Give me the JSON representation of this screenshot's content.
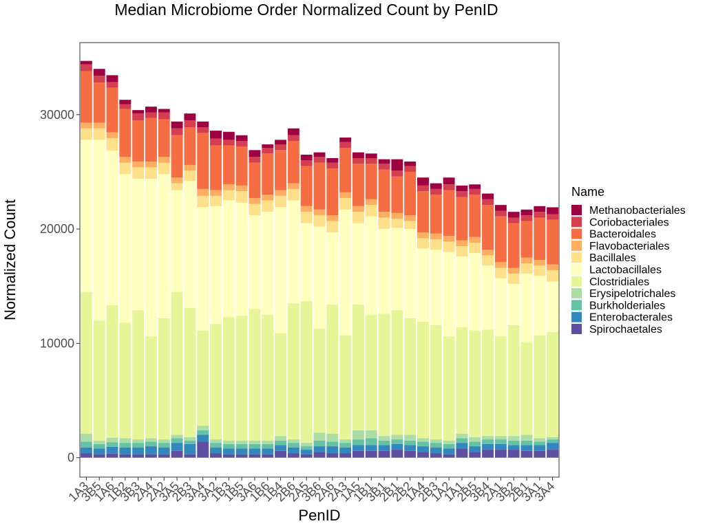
{
  "chart_data": {
    "type": "bar",
    "stacked": true,
    "title": "Median Microbiome Order Normalized Count by PenID",
    "xlabel": "PenID",
    "ylabel": "Normalized Count",
    "ylim": [
      -1700,
      36300
    ],
    "yticks": [
      0,
      10000,
      20000,
      30000
    ],
    "ytick_labels": [
      "0",
      "10000",
      "20000",
      "30000"
    ],
    "grid": false,
    "legend": {
      "title": "Name",
      "position": "right"
    },
    "categories": [
      "1A3",
      "3B5",
      "1A6",
      "1B2",
      "3B3",
      "2A4",
      "2A2",
      "3A5",
      "2B3",
      "3A4",
      "3A2",
      "1B3",
      "1B5",
      "3A6",
      "1B6",
      "1B4",
      "2B6",
      "2A5",
      "3B6",
      "2A6",
      "2A3",
      "1A5",
      "1B1",
      "3B1",
      "2B1",
      "2B2",
      "1A4",
      "2B3",
      "1A2",
      "1A1",
      "2B5",
      "3B4",
      "2A1",
      "3B2",
      "2B1",
      "3A1",
      "3A4"
    ],
    "series": [
      {
        "name": "Spirochaetales",
        "color": "#5E4FA2",
        "values": [
          400,
          300,
          350,
          300,
          300,
          300,
          300,
          600,
          300,
          1400,
          400,
          300,
          300,
          300,
          300,
          600,
          400,
          300,
          500,
          400,
          400,
          600,
          600,
          600,
          700,
          600,
          500,
          400,
          300,
          800,
          500,
          700,
          700,
          700,
          600,
          600,
          700
        ]
      },
      {
        "name": "Enterobacterales",
        "color": "#3288BD",
        "values": [
          500,
          500,
          600,
          600,
          600,
          700,
          600,
          700,
          900,
          600,
          500,
          500,
          500,
          500,
          500,
          500,
          500,
          400,
          500,
          600,
          500,
          500,
          500,
          500,
          500,
          500,
          500,
          500,
          500,
          500,
          500,
          500,
          500,
          400,
          500,
          500,
          600
        ]
      },
      {
        "name": "Burkholderiales",
        "color": "#66C2A5",
        "values": [
          500,
          400,
          400,
          400,
          400,
          400,
          400,
          400,
          300,
          400,
          400,
          400,
          400,
          400,
          400,
          400,
          400,
          300,
          500,
          400,
          400,
          500,
          600,
          400,
          400,
          400,
          400,
          400,
          400,
          400,
          400,
          400,
          400,
          400,
          400,
          300,
          300
        ]
      },
      {
        "name": "Erysipelotrichales",
        "color": "#ABDDA4",
        "values": [
          700,
          300,
          400,
          400,
          300,
          300,
          300,
          300,
          300,
          400,
          300,
          300,
          300,
          300,
          300,
          400,
          300,
          300,
          700,
          700,
          300,
          800,
          700,
          400,
          400,
          500,
          300,
          300,
          300,
          400,
          400,
          300,
          300,
          400,
          500,
          300,
          200
        ]
      },
      {
        "name": "Clostridiales",
        "color": "#E6F598",
        "values": [
          12400,
          10500,
          11600,
          10100,
          11300,
          8900,
          10600,
          12500,
          11300,
          8300,
          10100,
          10800,
          10900,
          11500,
          11000,
          9000,
          11900,
          12400,
          9100,
          11300,
          9100,
          11000,
          10100,
          10700,
          10900,
          10200,
          10200,
          10000,
          9100,
          9300,
          9300,
          9300,
          8700,
          9700,
          8100,
          9000,
          9200
        ]
      },
      {
        "name": "Lactobacillales",
        "color": "#FFFFBF",
        "values": [
          13300,
          15800,
          13500,
          13000,
          11500,
          13800,
          12600,
          8900,
          11100,
          10800,
          10300,
          10200,
          9900,
          8200,
          9000,
          11000,
          9000,
          6800,
          8900,
          6300,
          11000,
          7100,
          8600,
          7400,
          7200,
          7800,
          6400,
          6600,
          7400,
          6200,
          6800,
          5600,
          5100,
          3600,
          6000,
          5200,
          4400
        ]
      },
      {
        "name": "Bacillales",
        "color": "#FEE08B",
        "values": [
          1000,
          1000,
          1100,
          1000,
          1000,
          1000,
          1000,
          600,
          900,
          1000,
          900,
          900,
          1000,
          1000,
          1000,
          1000,
          1000,
          1000,
          1000,
          1000,
          1000,
          1000,
          1000,
          1000,
          800,
          700,
          900,
          900,
          900,
          900,
          900,
          900,
          900,
          900,
          900,
          900,
          1000
        ]
      },
      {
        "name": "Flavobacteriales",
        "color": "#FDAE61",
        "values": [
          500,
          500,
          500,
          500,
          500,
          500,
          500,
          500,
          500,
          600,
          500,
          500,
          500,
          500,
          500,
          500,
          500,
          500,
          500,
          500,
          500,
          500,
          500,
          500,
          500,
          500,
          500,
          500,
          500,
          500,
          500,
          500,
          500,
          500,
          500,
          500,
          500
        ]
      },
      {
        "name": "Bacteroidales",
        "color": "#F46D43",
        "values": [
          4500,
          3500,
          3900,
          4200,
          3600,
          3800,
          3300,
          3700,
          3300,
          4900,
          3900,
          3400,
          3400,
          3100,
          3600,
          3500,
          3700,
          3500,
          4100,
          4100,
          3900,
          3700,
          3100,
          3700,
          3200,
          3800,
          3600,
          3400,
          4000,
          3800,
          3700,
          3900,
          4000,
          3900,
          3200,
          3700,
          3900
        ]
      },
      {
        "name": "Coriobacteriales",
        "color": "#D53E4F",
        "values": [
          600,
          600,
          500,
          400,
          600,
          500,
          600,
          600,
          600,
          500,
          600,
          500,
          500,
          500,
          500,
          500,
          500,
          500,
          500,
          500,
          500,
          500,
          500,
          500,
          500,
          500,
          500,
          500,
          500,
          500,
          500,
          500,
          500,
          500,
          500,
          500,
          500
        ]
      },
      {
        "name": "Methanobacteriales",
        "color": "#9E0142",
        "values": [
          300,
          600,
          600,
          400,
          300,
          500,
          300,
          600,
          600,
          500,
          700,
          700,
          500,
          600,
          300,
          400,
          600,
          500,
          400,
          400,
          400,
          500,
          400,
          400,
          1000,
          400,
          700,
          500,
          600,
          500,
          400,
          500,
          500,
          500,
          500,
          500,
          600
        ]
      }
    ]
  }
}
